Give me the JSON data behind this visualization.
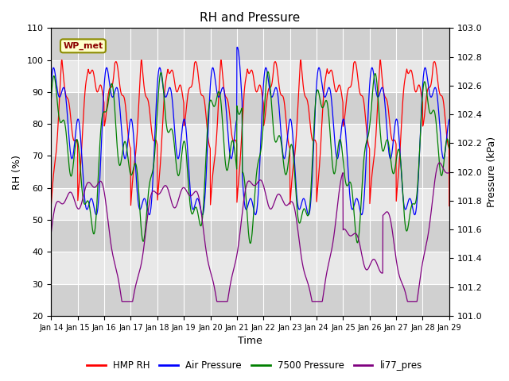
{
  "title": "RH and Pressure",
  "xlabel": "Time",
  "ylabel_left": "RH (%)",
  "ylabel_right": "Pressure (kPa)",
  "ylim_left": [
    20,
    110
  ],
  "ylim_right": [
    101.0,
    103.0
  ],
  "yticks_left": [
    20,
    30,
    40,
    50,
    60,
    70,
    80,
    90,
    100,
    110
  ],
  "yticks_right": [
    101.0,
    101.2,
    101.4,
    101.6,
    101.8,
    102.0,
    102.2,
    102.4,
    102.6,
    102.8,
    103.0
  ],
  "xtick_labels": [
    "Jan 14",
    "Jan 15",
    "Jan 16",
    "Jan 17",
    "Jan 18",
    "Jan 19",
    "Jan 20",
    "Jan 21",
    "Jan 22",
    "Jan 23",
    "Jan 24",
    "Jan 25",
    "Jan 26",
    "Jan 27",
    "Jan 28",
    "Jan 29"
  ],
  "line_colors": [
    "red",
    "blue",
    "green",
    "purple"
  ],
  "line_labels": [
    "HMP RH",
    "Air Pressure",
    "7500 Pressure",
    "li77_pres"
  ],
  "legend_label": "WP_met",
  "background_color": "#ffffff",
  "plot_bg_light": "#e8e8e8",
  "plot_bg_dark": "#d0d0d0",
  "title_fontsize": 11,
  "axis_fontsize": 9,
  "tick_fontsize": 8
}
